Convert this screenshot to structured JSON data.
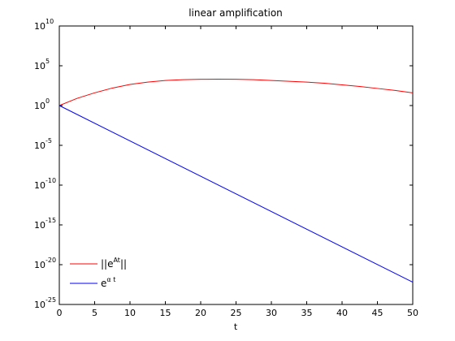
{
  "chart_data": {
    "type": "line",
    "title": "linear amplification",
    "xlabel": "t",
    "ylabel": "",
    "xlim": [
      0,
      50
    ],
    "ylim_exponent": [
      -25,
      10
    ],
    "y_scale": "log10",
    "grid": false,
    "legend_position": "bottom-left",
    "x_ticks": [
      "0",
      "5",
      "10",
      "15",
      "20",
      "25",
      "30",
      "35",
      "40",
      "45",
      "50"
    ],
    "y_ticks": [
      {
        "base": "10",
        "exp": "10"
      },
      {
        "base": "10",
        "exp": "5"
      },
      {
        "base": "10",
        "exp": "0"
      },
      {
        "base": "10",
        "exp": "-5"
      },
      {
        "base": "10",
        "exp": "-10"
      },
      {
        "base": "10",
        "exp": "-15"
      },
      {
        "base": "10",
        "exp": "-20"
      },
      {
        "base": "10",
        "exp": "-25"
      }
    ],
    "series": [
      {
        "name_main": "||e",
        "name_sup": "At",
        "name_tail": "||",
        "color": "#ff0000",
        "x": [
          0,
          2.5,
          5,
          7.5,
          10,
          12.5,
          15,
          17.5,
          20,
          22.5,
          25,
          27.5,
          30,
          32.5,
          35,
          37.5,
          40,
          42.5,
          45,
          47.5,
          50
        ],
        "y": [
          1,
          7.9,
          39.8,
          158.0,
          447.0,
          891.0,
          1410.0,
          1780.0,
          2000.0,
          2090.0,
          2000.0,
          1780.0,
          1410.0,
          1120.0,
          891.0,
          631.0,
          398.0,
          251.0,
          141.0,
          79.4,
          39.8
        ]
      },
      {
        "name_main": "e",
        "name_sup": "α t",
        "name_tail": "",
        "color": "#0000ff",
        "x": [
          0,
          50
        ],
        "y": [
          1,
          6.3e-23
        ]
      }
    ]
  }
}
